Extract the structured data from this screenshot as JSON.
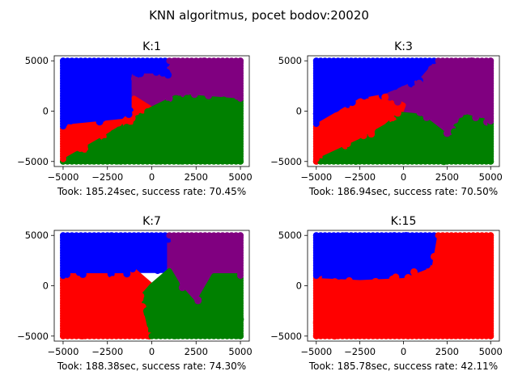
{
  "figure": {
    "suptitle": "KNN algoritmus, pocet bodov:20020"
  },
  "colors": {
    "blue": "#0000ff",
    "purple": "#800080",
    "red": "#ff0000",
    "green": "#008000"
  },
  "chart_data": [
    {
      "type": "scatter",
      "title": "K:1",
      "xlabel": "Took: 185.24sec, success rate: 70.45%",
      "xlim": [
        -5500,
        5500
      ],
      "ylim": [
        -5500,
        5500
      ],
      "xticks": [
        -5000,
        -2500,
        0,
        2500,
        5000
      ],
      "yticks": [
        -5000,
        0,
        5000
      ],
      "tick_labels_x": [
        "−5000",
        "−2500",
        "0",
        "2500",
        "5000"
      ],
      "tick_labels_y": [
        "−5000",
        "0",
        "5000"
      ],
      "grid": false,
      "regions": [
        {
          "class": "blue",
          "polygon": [
            [
              -5000,
              5000
            ],
            [
              1000,
              5000
            ],
            [
              1000,
              3500
            ],
            [
              -1000,
              3500
            ],
            [
              -1000,
              0
            ],
            [
              -1600,
              -1000
            ],
            [
              -5000,
              -1600
            ]
          ]
        },
        {
          "class": "purple",
          "polygon": [
            [
              1000,
              5000
            ],
            [
              5000,
              5000
            ],
            [
              5000,
              1000
            ],
            [
              1500,
              1500
            ],
            [
              0,
              200
            ],
            [
              -1000,
              1300
            ],
            [
              -1000,
              3500
            ],
            [
              1000,
              3500
            ]
          ]
        },
        {
          "class": "red",
          "polygon": [
            [
              -5000,
              -1600
            ],
            [
              -1600,
              -1000
            ],
            [
              -1000,
              0
            ],
            [
              -1000,
              1300
            ],
            [
              0,
              200
            ],
            [
              -1000,
              -800
            ],
            [
              -2500,
              -2500
            ],
            [
              -5000,
              -5000
            ]
          ]
        },
        {
          "class": "green",
          "polygon": [
            [
              -5000,
              -5000
            ],
            [
              -2500,
              -2500
            ],
            [
              -1000,
              -800
            ],
            [
              0,
              200
            ],
            [
              1500,
              1500
            ],
            [
              5000,
              1000
            ],
            [
              5000,
              -5000
            ]
          ]
        }
      ]
    },
    {
      "type": "scatter",
      "title": "K:3",
      "xlabel": "Took: 186.94sec, success rate: 70.50%",
      "xlim": [
        -5500,
        5500
      ],
      "ylim": [
        -5500,
        5500
      ],
      "xticks": [
        -5000,
        -2500,
        0,
        2500,
        5000
      ],
      "yticks": [
        -5000,
        0,
        5000
      ],
      "tick_labels_x": [
        "−5000",
        "−2500",
        "0",
        "2500",
        "5000"
      ],
      "tick_labels_y": [
        "−5000",
        "0",
        "5000"
      ],
      "grid": false,
      "regions": [
        {
          "class": "blue",
          "polygon": [
            [
              -5000,
              5000
            ],
            [
              2000,
              5000
            ],
            [
              1000,
              3000
            ],
            [
              -1000,
              1500
            ],
            [
              -2500,
              1000
            ],
            [
              -5000,
              -1500
            ]
          ]
        },
        {
          "class": "purple",
          "polygon": [
            [
              2000,
              5000
            ],
            [
              5000,
              5000
            ],
            [
              5000,
              -1200
            ],
            [
              3500,
              -500
            ],
            [
              2500,
              -2500
            ],
            [
              1000,
              -500
            ],
            [
              -200,
              -300
            ],
            [
              0,
              600
            ],
            [
              -1000,
              1500
            ],
            [
              1000,
              3000
            ]
          ]
        },
        {
          "class": "red",
          "polygon": [
            [
              -5000,
              -1500
            ],
            [
              -2500,
              1000
            ],
            [
              -1000,
              1500
            ],
            [
              0,
              600
            ],
            [
              -200,
              -300
            ],
            [
              -1000,
              -1500
            ],
            [
              -2500,
              -3000
            ],
            [
              -5000,
              -5000
            ]
          ]
        },
        {
          "class": "green",
          "polygon": [
            [
              -5000,
              -5000
            ],
            [
              -2500,
              -3000
            ],
            [
              -1000,
              -1500
            ],
            [
              -200,
              -300
            ],
            [
              1000,
              -500
            ],
            [
              2500,
              -2500
            ],
            [
              3500,
              -500
            ],
            [
              5000,
              -1200
            ],
            [
              5000,
              -5000
            ]
          ]
        }
      ]
    },
    {
      "type": "scatter",
      "title": "K:7",
      "xlabel": "Took: 188.38sec, success rate: 74.30%",
      "xlim": [
        -5500,
        5500
      ],
      "ylim": [
        -5500,
        5500
      ],
      "xticks": [
        -5000,
        -2500,
        0,
        2500,
        5000
      ],
      "yticks": [
        -5000,
        0,
        5000
      ],
      "tick_labels_x": [
        "−5000",
        "−2500",
        "0",
        "2500",
        "5000"
      ],
      "tick_labels_y": [
        "−5000",
        "0",
        "5000"
      ],
      "grid": false,
      "regions": [
        {
          "class": "blue",
          "polygon": [
            [
              -5000,
              5000
            ],
            [
              1000,
              5000
            ],
            [
              1000,
              1500
            ],
            [
              -1000,
              1500
            ],
            [
              -1200,
              1000
            ],
            [
              -5000,
              1000
            ]
          ]
        },
        {
          "class": "purple",
          "polygon": [
            [
              1000,
              5000
            ],
            [
              5000,
              5000
            ],
            [
              5000,
              1000
            ],
            [
              3500,
              1000
            ],
            [
              2500,
              -2000
            ],
            [
              1500,
              0
            ],
            [
              1000,
              1500
            ]
          ]
        },
        {
          "class": "red",
          "polygon": [
            [
              -5000,
              1000
            ],
            [
              -1200,
              1000
            ],
            [
              -1000,
              1500
            ],
            [
              0,
              0
            ],
            [
              -500,
              -1000
            ],
            [
              0,
              -5000
            ],
            [
              -5000,
              -5000
            ]
          ]
        },
        {
          "class": "green",
          "polygon": [
            [
              0,
              -5000
            ],
            [
              -500,
              -1000
            ],
            [
              0,
              0
            ],
            [
              1000,
              1500
            ],
            [
              1500,
              0
            ],
            [
              2500,
              -2000
            ],
            [
              3500,
              1000
            ],
            [
              5000,
              1000
            ],
            [
              5000,
              -5000
            ]
          ]
        }
      ]
    },
    {
      "type": "scatter",
      "title": "K:15",
      "xlabel": "Took: 185.78sec, success rate: 42.11%",
      "xlim": [
        -5500,
        5500
      ],
      "ylim": [
        -5500,
        5500
      ],
      "xticks": [
        -5000,
        -2500,
        0,
        2500,
        5000
      ],
      "yticks": [
        -5000,
        0,
        5000
      ],
      "tick_labels_x": [
        "−5000",
        "−2500",
        "0",
        "2500",
        "5000"
      ],
      "tick_labels_y": [
        "−5000",
        "0",
        "5000"
      ],
      "grid": false,
      "regions": [
        {
          "class": "red",
          "polygon": [
            [
              -5000,
              -5000
            ],
            [
              5000,
              -5000
            ],
            [
              5000,
              5000
            ],
            [
              -5000,
              5000
            ]
          ]
        },
        {
          "class": "blue",
          "polygon": [
            [
              -5000,
              5000
            ],
            [
              1800,
              5000
            ],
            [
              1500,
              2000
            ],
            [
              0,
              1000
            ],
            [
              -2500,
              800
            ],
            [
              -5000,
              1000
            ]
          ]
        }
      ]
    }
  ]
}
